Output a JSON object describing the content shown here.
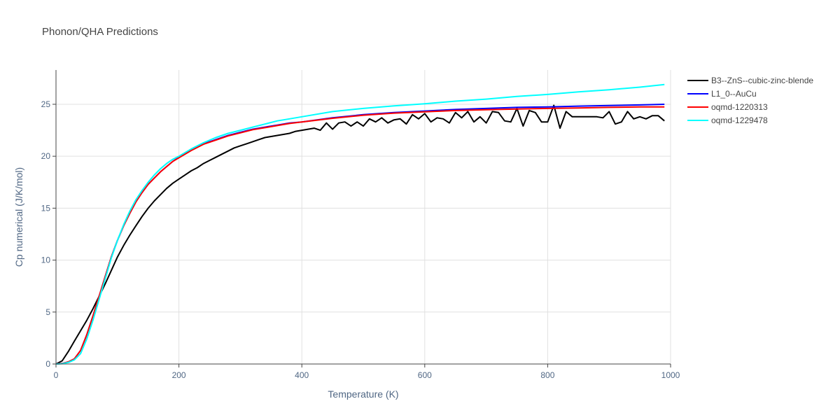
{
  "chart_data": {
    "type": "line",
    "title": "Phonon/QHA Predictions",
    "xlabel": "Temperature (K)",
    "ylabel": "Cp numerical (J/K/mol)",
    "xlim": [
      0,
      1000
    ],
    "ylim": [
      0,
      28.3
    ],
    "xticks": [
      0,
      200,
      400,
      600,
      800,
      1000
    ],
    "yticks": [
      0,
      5,
      10,
      15,
      20,
      25
    ],
    "grid": true,
    "legend_position": "top-right",
    "series": [
      {
        "name": "B3--ZnS--cubic-zinc-blende",
        "color": "#000000",
        "x": [
          0,
          10,
          20,
          30,
          40,
          50,
          60,
          70,
          80,
          90,
          100,
          110,
          120,
          130,
          140,
          150,
          160,
          170,
          180,
          190,
          200,
          210,
          220,
          230,
          240,
          250,
          260,
          270,
          280,
          290,
          300,
          310,
          320,
          330,
          340,
          350,
          360,
          370,
          380,
          390,
          400,
          410,
          420,
          430,
          440,
          450,
          460,
          470,
          480,
          490,
          500,
          510,
          520,
          530,
          540,
          550,
          560,
          570,
          580,
          590,
          600,
          610,
          620,
          630,
          640,
          650,
          660,
          670,
          680,
          690,
          700,
          710,
          720,
          730,
          740,
          750,
          760,
          770,
          780,
          790,
          800,
          810,
          820,
          830,
          840,
          850,
          860,
          870,
          880,
          890,
          900,
          910,
          920,
          930,
          940,
          950,
          960,
          970,
          980,
          990
        ],
        "y": [
          0,
          0.3,
          1.2,
          2.2,
          3.2,
          4.2,
          5.3,
          6.5,
          7.7,
          9.0,
          10.3,
          11.4,
          12.4,
          13.3,
          14.2,
          15.0,
          15.7,
          16.3,
          16.9,
          17.4,
          17.8,
          18.2,
          18.6,
          18.9,
          19.3,
          19.6,
          19.9,
          20.2,
          20.5,
          20.8,
          21.0,
          21.2,
          21.4,
          21.6,
          21.8,
          21.9,
          22.0,
          22.1,
          22.2,
          22.4,
          22.5,
          22.6,
          22.7,
          22.5,
          23.2,
          22.6,
          23.2,
          23.3,
          22.9,
          23.3,
          22.9,
          23.6,
          23.3,
          23.7,
          23.2,
          23.5,
          23.6,
          23.1,
          24.0,
          23.6,
          24.1,
          23.3,
          23.7,
          23.6,
          23.2,
          24.2,
          23.7,
          24.3,
          23.3,
          23.8,
          23.2,
          24.3,
          24.2,
          23.4,
          23.3,
          24.6,
          22.9,
          24.4,
          24.2,
          23.3,
          23.3,
          24.9,
          22.7,
          24.3,
          23.8,
          23.8,
          23.8,
          23.8,
          23.8,
          23.7,
          24.3,
          23.1,
          23.3,
          24.3,
          23.6,
          23.8,
          23.6,
          23.9,
          23.9,
          23.4
        ]
      },
      {
        "name": "L1_0--AuCu",
        "color": "#0000ff",
        "x": [
          0,
          10,
          20,
          30,
          40,
          50,
          60,
          70,
          80,
          90,
          100,
          110,
          120,
          130,
          140,
          150,
          160,
          170,
          180,
          190,
          200,
          220,
          240,
          260,
          280,
          300,
          320,
          340,
          360,
          380,
          400,
          450,
          500,
          550,
          600,
          650,
          700,
          750,
          800,
          850,
          900,
          950,
          990
        ],
        "y": [
          0,
          0.05,
          0.2,
          0.5,
          1.3,
          2.8,
          4.6,
          6.5,
          8.4,
          10.3,
          11.9,
          13.3,
          14.5,
          15.6,
          16.5,
          17.3,
          17.9,
          18.5,
          19.0,
          19.5,
          19.9,
          20.6,
          21.2,
          21.6,
          22.0,
          22.3,
          22.6,
          22.8,
          23.0,
          23.2,
          23.3,
          23.7,
          24.0,
          24.2,
          24.35,
          24.5,
          24.6,
          24.7,
          24.75,
          24.82,
          24.88,
          24.94,
          25.0
        ]
      },
      {
        "name": "oqmd-1220313",
        "color": "#ff0000",
        "x": [
          0,
          10,
          20,
          30,
          40,
          50,
          60,
          70,
          80,
          90,
          100,
          110,
          120,
          130,
          140,
          150,
          160,
          170,
          180,
          190,
          200,
          220,
          240,
          260,
          280,
          300,
          320,
          340,
          360,
          380,
          400,
          450,
          500,
          550,
          600,
          650,
          700,
          750,
          800,
          850,
          900,
          950,
          990
        ],
        "y": [
          0,
          0.05,
          0.2,
          0.5,
          1.3,
          2.8,
          4.6,
          6.5,
          8.4,
          10.3,
          11.9,
          13.3,
          14.5,
          15.6,
          16.5,
          17.3,
          17.9,
          18.5,
          19.0,
          19.5,
          19.85,
          20.55,
          21.15,
          21.55,
          21.95,
          22.25,
          22.55,
          22.75,
          22.95,
          23.15,
          23.3,
          23.65,
          23.95,
          24.15,
          24.28,
          24.4,
          24.48,
          24.55,
          24.6,
          24.65,
          24.7,
          24.74,
          24.75
        ]
      },
      {
        "name": "oqmd-1229478",
        "color": "#00ffff",
        "x": [
          0,
          10,
          20,
          30,
          40,
          50,
          60,
          70,
          80,
          90,
          100,
          110,
          120,
          130,
          140,
          150,
          160,
          170,
          180,
          190,
          200,
          220,
          240,
          260,
          280,
          300,
          320,
          340,
          360,
          380,
          400,
          450,
          500,
          550,
          600,
          650,
          700,
          750,
          800,
          850,
          900,
          950,
          990
        ],
        "y": [
          0,
          0.03,
          0.15,
          0.4,
          1.0,
          2.4,
          4.2,
          6.2,
          8.2,
          10.2,
          11.9,
          13.4,
          14.7,
          15.8,
          16.7,
          17.5,
          18.2,
          18.8,
          19.3,
          19.7,
          20.0,
          20.7,
          21.3,
          21.8,
          22.2,
          22.5,
          22.8,
          23.1,
          23.4,
          23.6,
          23.8,
          24.3,
          24.6,
          24.85,
          25.05,
          25.3,
          25.5,
          25.75,
          25.95,
          26.2,
          26.4,
          26.65,
          26.9
        ]
      }
    ]
  }
}
